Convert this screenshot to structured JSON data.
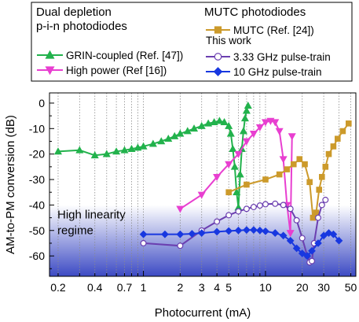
{
  "chart_data": {
    "type": "line",
    "xlabel": "Photocurrent (mA)",
    "ylabel": "AM-to-PM conversion (dB)",
    "xscale": "log",
    "xlim": [
      0.17,
      55
    ],
    "ylim": [
      -68,
      4
    ],
    "xticks": [
      0.2,
      0.3,
      0.4,
      0.5,
      0.6,
      0.7,
      0.8,
      0.9,
      1,
      2,
      3,
      4,
      5,
      6,
      7,
      8,
      9,
      10,
      20,
      30,
      40,
      50
    ],
    "xtick_labels": [
      "0.2",
      "0.4",
      "0.7",
      "1",
      "2",
      "3",
      "4",
      "5",
      "10",
      "20",
      "30",
      "50"
    ],
    "xtick_label_values": [
      0.2,
      0.4,
      0.7,
      1,
      2,
      3,
      4,
      5,
      10,
      20,
      30,
      50
    ],
    "yticks": [
      0,
      -10,
      -20,
      -30,
      -40,
      -50,
      -60
    ],
    "ytick_labels": [
      "0",
      "-10",
      "-20",
      "-30",
      "-40",
      "-50",
      "-60"
    ],
    "grid": "vertical dotted at x ticks",
    "legend_placement": "top",
    "legend_groups": [
      {
        "heading": "Dual depletion\np-i-n photodiodes",
        "line1": "Dual depletion",
        "line2": "p-i-n photodiodes"
      },
      {
        "heading": "MUTC photodiodes",
        "subheading": "This work"
      }
    ],
    "region": {
      "label_line1": "High linearity",
      "label_line2": "regime",
      "y_from": -40,
      "y_to": -68
    },
    "series": [
      {
        "name": "GRIN-coupled (Ref. [47])",
        "color": "#22b24c",
        "marker": "triangle-up",
        "filled": true,
        "x": [
          0.2,
          0.3,
          0.4,
          0.5,
          0.6,
          0.7,
          0.8,
          0.9,
          1.0,
          1.2,
          1.4,
          1.6,
          1.8,
          2.0,
          2.3,
          2.6,
          3.0,
          3.4,
          3.8,
          4.2,
          4.6,
          5.0,
          5.2,
          5.4,
          5.6,
          5.8,
          6.0,
          6.2,
          6.4,
          6.6,
          6.8,
          7.0,
          7.2
        ],
        "y": [
          -19,
          -18.5,
          -20.5,
          -20,
          -19,
          -18.5,
          -18,
          -17.5,
          -17,
          -16,
          -15,
          -14,
          -13,
          -12,
          -11,
          -10,
          -9,
          -8,
          -7.5,
          -7,
          -7.5,
          -9,
          -12,
          -18,
          -25,
          -35,
          -41,
          -28,
          -18,
          -11,
          -6,
          -3,
          -1
        ]
      },
      {
        "name": "High power (Ref [16])",
        "color": "#e83fd0",
        "marker": "triangle-down",
        "filled": true,
        "x": [
          2,
          3,
          4,
          5,
          6,
          7,
          8,
          9,
          10,
          11,
          12,
          13,
          14,
          15,
          16,
          16.5
        ],
        "y": [
          -41.5,
          -36,
          -29,
          -24,
          -20,
          -15,
          -12,
          -9.5,
          -7.5,
          -7,
          -7.5,
          -11,
          -22,
          -40,
          -51,
          -13
        ]
      },
      {
        "name": "MUTC (Ref. [24])",
        "color": "#cc9a2b",
        "marker": "square",
        "filled": true,
        "x": [
          5,
          7,
          10,
          13,
          15,
          17,
          19,
          21,
          23,
          24.5,
          26,
          27.5,
          29,
          31,
          33,
          36,
          39,
          43,
          48
        ],
        "y": [
          -35,
          -32,
          -30,
          -28,
          -26,
          -24,
          -22,
          -24,
          -31,
          -45,
          -43,
          -34,
          -29,
          -25,
          -20,
          -17,
          -14,
          -11,
          -8
        ]
      },
      {
        "name": "3.33 GHz pulse-train",
        "color": "#6b3fb0",
        "marker": "circle",
        "filled": false,
        "x": [
          1,
          2,
          3,
          4,
          5,
          6,
          7,
          8,
          9,
          10,
          12,
          14,
          16,
          18,
          20,
          22,
          23,
          24,
          25,
          27,
          29,
          31
        ],
        "y": [
          -55,
          -56,
          -50,
          -46.5,
          -44,
          -42.5,
          -41.5,
          -40.8,
          -40.2,
          -39.7,
          -39.5,
          -40,
          -41.5,
          -46,
          -53,
          -60,
          -62.5,
          -62,
          -55,
          -45,
          -40,
          -38
        ]
      },
      {
        "name": "10 GHz pulse-train",
        "color": "#1838e0",
        "marker": "diamond",
        "filled": true,
        "x": [
          1,
          1.5,
          2,
          2.5,
          3,
          4,
          5,
          6,
          7,
          8,
          9,
          10,
          12,
          14,
          16,
          18,
          20,
          22,
          24,
          27,
          30,
          33,
          36,
          40
        ],
        "y": [
          -51.5,
          -51.5,
          -51.5,
          -51.3,
          -51,
          -50.5,
          -50.2,
          -50,
          -49.8,
          -49.8,
          -50,
          -50.3,
          -51,
          -52,
          -54,
          -57,
          -59,
          -60,
          -58,
          -55,
          -52,
          -51,
          -51.5,
          -54
        ]
      }
    ]
  }
}
